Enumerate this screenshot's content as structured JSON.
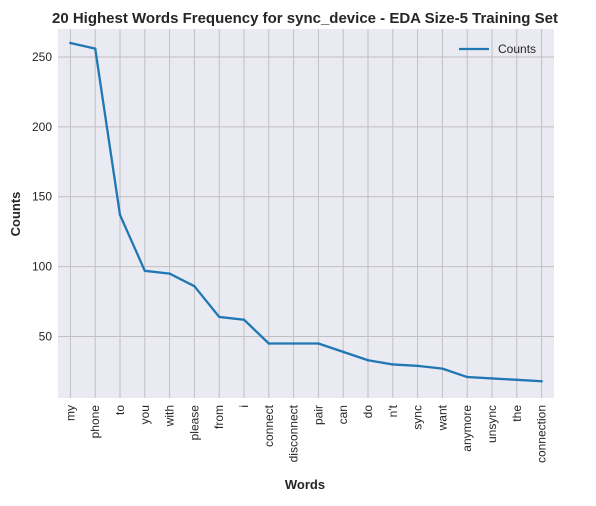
{
  "chart_data": {
    "type": "line",
    "title": "20 Highest Words Frequency for sync_device - EDA Size-5 Training Set",
    "xlabel": "Words",
    "ylabel": "Counts",
    "categories": [
      "my",
      "phone",
      "to",
      "you",
      "with",
      "please",
      "from",
      "i",
      "connect",
      "disconnect",
      "pair",
      "can",
      "do",
      "n't",
      "sync",
      "want",
      "anymore",
      "unsync",
      "the",
      "connection"
    ],
    "series": [
      {
        "name": "Counts",
        "values": [
          260,
          256,
          137,
          97,
          95,
          86,
          64,
          62,
          45,
          45,
          45,
          39,
          33,
          30,
          29,
          27,
          21,
          20,
          19,
          18
        ],
        "color": "#1f77b4"
      }
    ],
    "yticks": [
      50,
      100,
      150,
      200,
      250
    ],
    "ylim": [
      6,
      270
    ],
    "grid": true,
    "legend_position": "top-right",
    "background_color": "#eaeaf2",
    "grid_color": "#c0c0c0"
  }
}
